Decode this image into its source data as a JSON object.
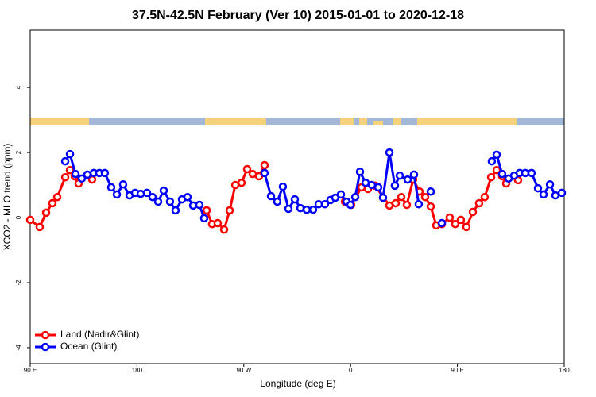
{
  "chart_data": {
    "type": "line",
    "title": "37.5N-42.5N February (Ver 10)   2015-01-01 to 2020-12-18",
    "x_label": "Longitude (deg E)",
    "y_label": "XCO2 - MLO trend (ppm)",
    "xlim": [
      90,
      540
    ],
    "xticks": [
      {
        "value": 90,
        "label": "90 E"
      },
      {
        "value": 180,
        "label": "180"
      },
      {
        "value": 270,
        "label": "90 W"
      },
      {
        "value": 360,
        "label": "0"
      },
      {
        "value": 450,
        "label": "90 E"
      },
      {
        "value": 540,
        "label": "180"
      }
    ],
    "ylim": [
      -4.49,
      5.76
    ],
    "yticks": [
      -4,
      -2,
      0,
      2,
      4
    ],
    "legend": "lower left",
    "series": [
      {
        "name": "Land (Nadir&Glint)",
        "color": "#ff0000",
        "x": [
          90,
          98.0,
          103.4,
          108.7,
          112.8,
          119.5,
          123.5,
          127.5,
          130.8,
          null,
          142.2,
          null,
          238.7,
          243.3,
          248.0,
          253.4,
          258.1,
          262.8,
          268.1,
          272.8,
          277.5,
          282.8,
          287.5,
          null,
          355.2,
          360.5,
          369.2,
          374.6,
          380.6,
          392.7,
          398.0,
          402.7,
          407.4,
          412.7,
          418.1,
          422.8,
          427.5,
          432.2,
          436.9,
          443.5,
          448.2,
          452.9,
          457.6,
          463.0,
          468.3,
          473.0,
          478.4,
          483.1,
          487.7,
          491.1,
          null,
          501.1
        ],
        "values": [
          -0.07,
          -0.29,
          0.15,
          0.44,
          0.63,
          1.24,
          1.46,
          1.27,
          1.05,
          null,
          1.17,
          null,
          0.22,
          -0.2,
          -0.17,
          -0.37,
          0.22,
          1.0,
          1.07,
          1.49,
          1.34,
          1.27,
          1.61,
          null,
          0.49,
          0.39,
          0.93,
          0.88,
          0.98,
          0.37,
          0.44,
          0.63,
          0.39,
          1.17,
          0.8,
          0.63,
          0.34,
          -0.24,
          -0.2,
          0.0,
          -0.2,
          -0.07,
          -0.29,
          0.17,
          0.44,
          0.63,
          1.24,
          1.46,
          1.27,
          1.05,
          null,
          1.15
        ]
      },
      {
        "name": "Ocean (Glint)",
        "color": "#0000ff",
        "x": [
          119.5,
          123.5,
          128.2,
          133.5,
          138.2,
          143.6,
          148.3,
          152.9,
          158.3,
          163.0,
          168.3,
          173.7,
          178.4,
          183.1,
          188.4,
          193.1,
          197.8,
          202.5,
          207.8,
          212.5,
          217.9,
          222.6,
          227.3,
          232.6,
          236.6,
          null,
          287.5,
          292.9,
          298.2,
          302.9,
          307.6,
          313.0,
          317.7,
          323.0,
          328.4,
          333.1,
          338.4,
          343.1,
          347.1,
          351.8,
          356.5,
          359.9,
          363.9,
          367.9,
          372.6,
          377.9,
          383.3,
          387.3,
          392.7,
          397.3,
          401.4,
          408.1,
          413.4,
          417.4,
          null,
          427.5,
          null,
          436.9,
          null,
          479.0,
          483.1,
          487.7,
          493.1,
          497.8,
          502.5,
          507.2,
          512.5,
          517.9,
          522.6,
          528.0,
          532.6,
          538.0
        ],
        "values": [
          1.73,
          1.95,
          1.34,
          1.2,
          1.32,
          1.37,
          1.37,
          1.37,
          0.93,
          0.71,
          1.02,
          0.68,
          0.76,
          0.73,
          0.76,
          0.63,
          0.49,
          0.83,
          0.49,
          0.22,
          0.56,
          0.63,
          0.37,
          0.39,
          -0.02,
          null,
          1.37,
          0.66,
          0.49,
          0.95,
          0.27,
          0.56,
          0.29,
          0.24,
          0.24,
          0.41,
          0.41,
          0.54,
          0.61,
          0.71,
          0.49,
          0.39,
          0.63,
          1.41,
          1.07,
          1.0,
          0.93,
          0.61,
          2.0,
          0.98,
          1.29,
          1.17,
          1.32,
          0.41,
          null,
          0.8,
          null,
          -0.17,
          null,
          1.73,
          1.93,
          1.34,
          1.2,
          1.29,
          1.37,
          1.37,
          1.37,
          0.9,
          0.71,
          1.02,
          0.68,
          0.76
        ]
      }
    ]
  }
}
